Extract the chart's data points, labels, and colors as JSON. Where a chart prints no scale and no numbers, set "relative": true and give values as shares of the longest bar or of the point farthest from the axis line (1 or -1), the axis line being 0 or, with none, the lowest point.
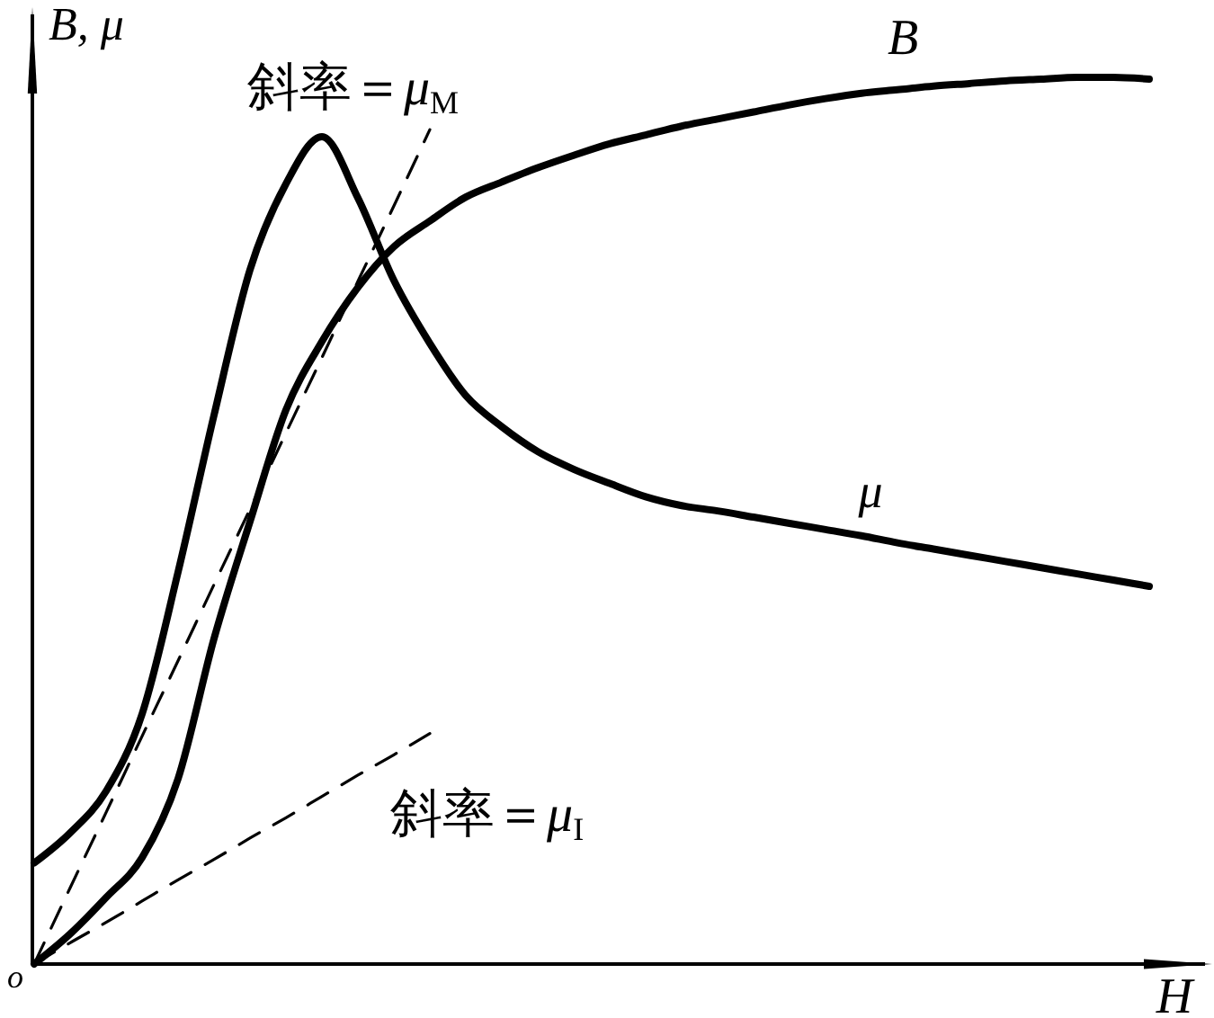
{
  "chart_data": {
    "type": "line",
    "relative": true,
    "xlabel": "H",
    "ylabel": "B, μ",
    "annotations": [
      "o"
    ],
    "line_style": "solid",
    "categories": [
      null,
      null,
      null,
      null,
      null,
      null,
      null,
      null,
      null,
      null,
      null,
      null,
      null,
      null,
      null,
      null,
      null,
      null,
      null,
      null,
      null,
      null,
      null,
      null,
      null,
      null,
      null,
      null,
      null,
      null,
      null,
      null
    ],
    "series": [
      {
        "name": "B",
        "color": "#000000",
        "values": [
          0,
          0.034,
          0.075,
          0.12,
          0.209,
          0.367,
          0.499,
          0.625,
          0.702,
          0.763,
          0.809,
          0.838,
          0.865,
          0.882,
          0.898,
          0.912,
          0.925,
          0.935,
          0.945,
          0.953,
          0.961,
          0.969,
          0.976,
          0.982,
          0.986,
          0.99,
          0.993,
          0.996,
          0.998,
          1,
          1,
          0.998
        ]
      },
      {
        "name": "μ",
        "color": "#000000",
        "values": [
          0.114,
          0.148,
          0.195,
          0.282,
          0.442,
          0.619,
          0.783,
          0.88,
          0.933,
          0.864,
          0.771,
          0.7,
          0.641,
          0.606,
          0.578,
          0.558,
          0.542,
          0.527,
          0.517,
          0.511,
          0.504,
          0.497,
          0.49,
          0.483,
          0.475,
          0.468,
          0.461,
          0.454,
          0.447,
          0.44,
          0.433,
          0.426
        ]
      },
      {
        "name": "斜率＝μ$_{M}$",
        "color": "#000000",
        "line_style": "dashed",
        "values": [
          0,
          0.086,
          0.171,
          0.257,
          0.342,
          0.428,
          0.513,
          0.599,
          0.684,
          0.77,
          0.855,
          0.941,
          null,
          null,
          null,
          null,
          null,
          null,
          null,
          null,
          null,
          null,
          null,
          null,
          null,
          null,
          null,
          null,
          null,
          null,
          null,
          null
        ]
      },
      {
        "name": "斜率＝μ$_{I}$",
        "color": "#000000",
        "line_style": "dashed",
        "values": [
          0,
          0.024,
          0.047,
          0.071,
          0.095,
          0.118,
          0.142,
          0.165,
          0.189,
          0.213,
          0.236,
          0.26,
          null,
          null,
          null,
          null,
          null,
          null,
          null,
          null,
          null,
          null,
          null,
          null,
          null,
          null,
          null,
          null,
          null,
          null,
          null,
          null
        ]
      }
    ]
  }
}
